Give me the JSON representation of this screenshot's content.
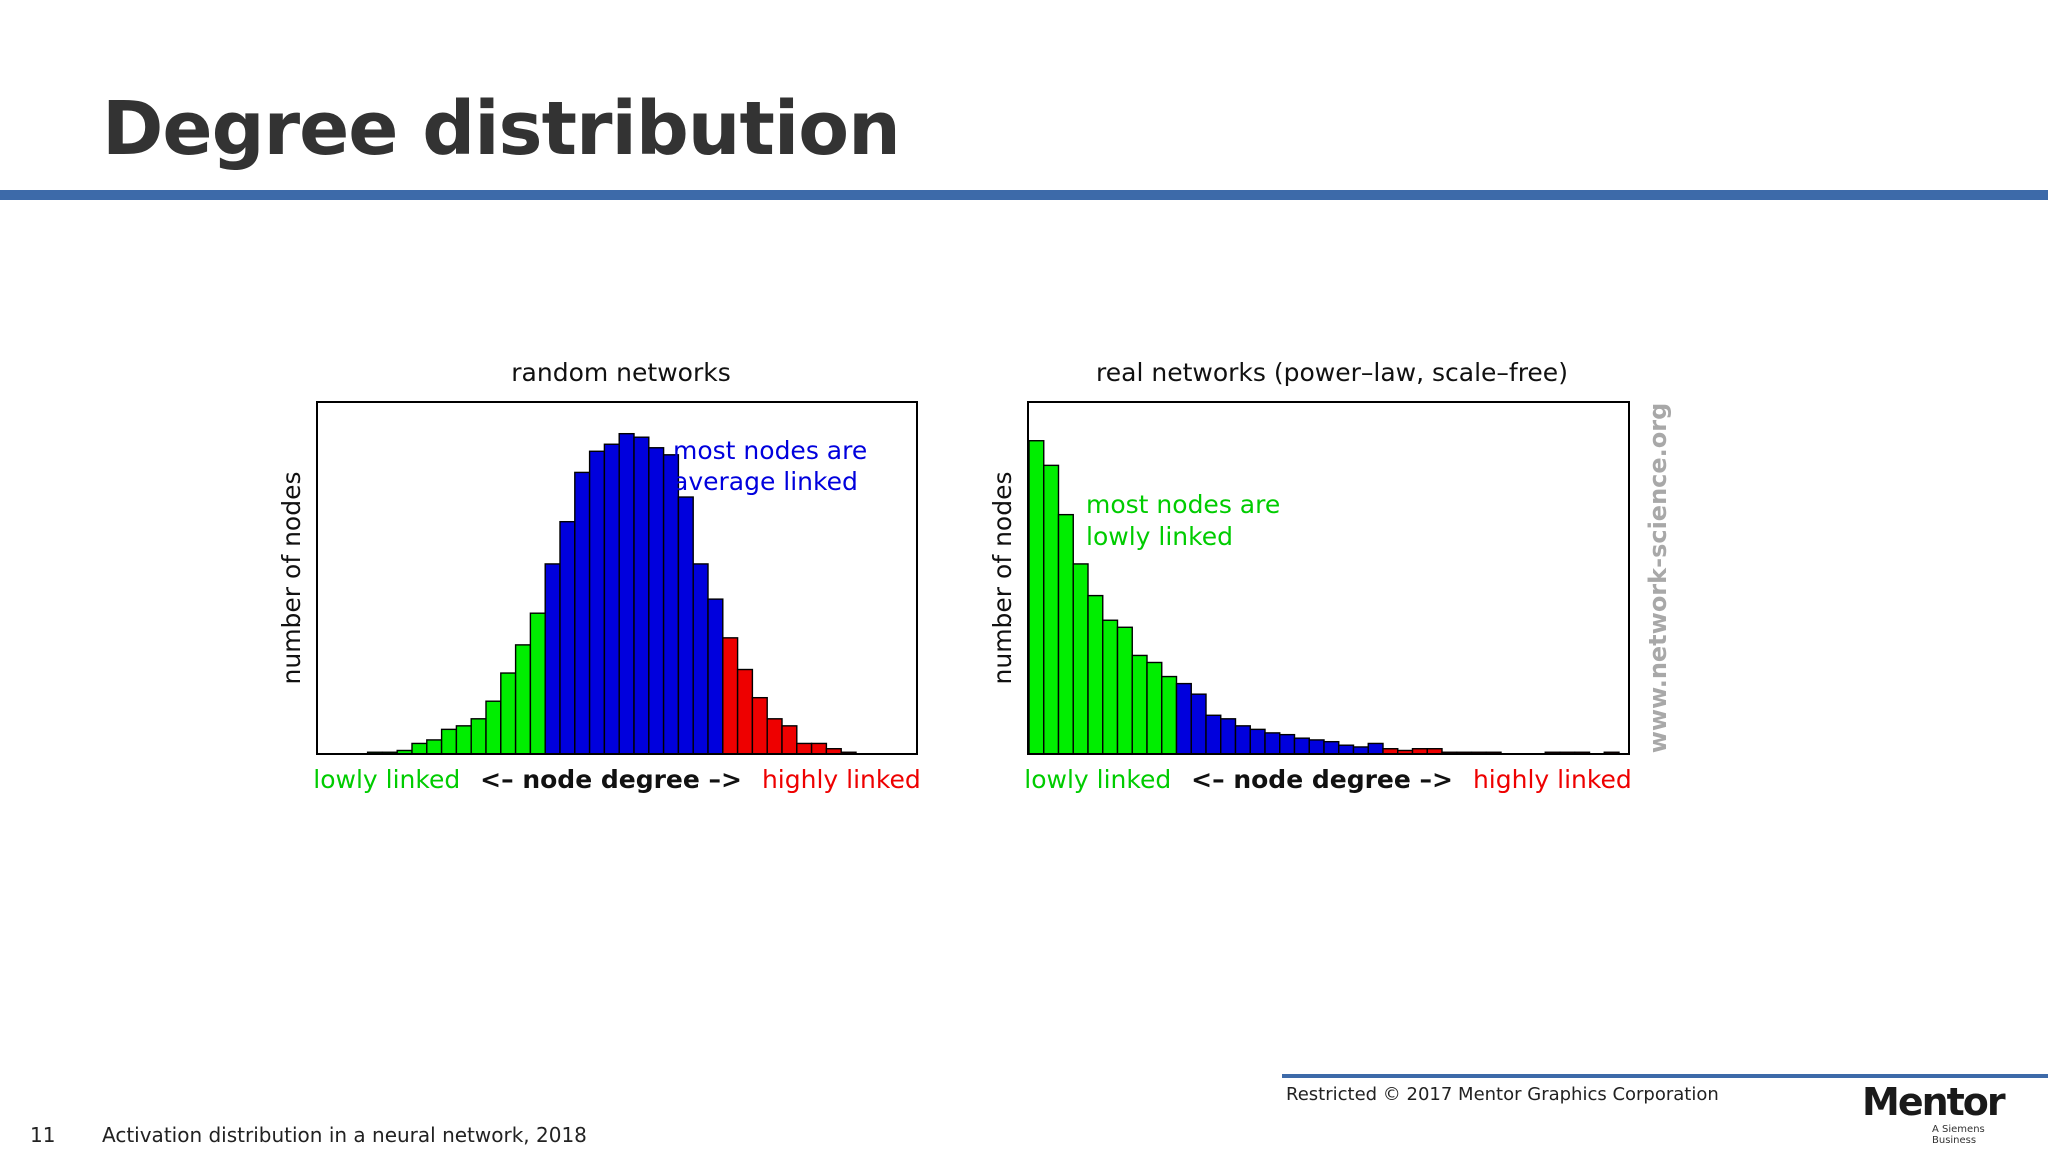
{
  "slide": {
    "title": "Degree distribution",
    "copyright": "Restricted © 2017 Mentor Graphics Corporation",
    "page_number": "11",
    "footer": "Activation distribution in a neural network, 2018",
    "logo_text": "Mentor",
    "logo_subtext": "A Siemens Business",
    "watermark": "www.network-science.org"
  },
  "colors": {
    "green": "#00ee00",
    "blue": "#0000dd",
    "red": "#ee0000",
    "title_bar": "#3d6aa9"
  },
  "chart_data": [
    {
      "type": "bar",
      "title": "random networks",
      "ylabel": "number of nodes",
      "xlabel_parts": {
        "left": "lowly linked",
        "center": "<– node degree –>",
        "right": "highly linked"
      },
      "annotation": [
        "most nodes are",
        "average linked"
      ],
      "annotation_color": "blue",
      "ylim": [
        0,
        100
      ],
      "values": [
        0,
        0,
        0.5,
        0.5,
        1,
        3,
        4,
        7,
        8,
        10,
        15,
        23,
        31,
        40,
        54,
        66,
        80,
        86,
        88,
        91,
        90,
        87,
        85,
        73,
        54,
        44,
        33,
        24,
        16,
        10,
        8,
        3,
        3,
        1.5,
        0.5,
        0,
        0
      ],
      "segments": [
        "green",
        "green",
        "green",
        "green",
        "green",
        "green",
        "green",
        "green",
        "green",
        "green",
        "green",
        "green",
        "green",
        "green",
        "blue",
        "blue",
        "blue",
        "blue",
        "blue",
        "blue",
        "blue",
        "blue",
        "blue",
        "blue",
        "blue",
        "blue",
        "red",
        "red",
        "red",
        "red",
        "red",
        "red",
        "red",
        "red",
        "red",
        "red",
        "red"
      ]
    },
    {
      "type": "bar",
      "title": "real networks (power–law, scale–free)",
      "ylabel": "number of nodes",
      "xlabel_parts": {
        "left": "lowly linked",
        "center": "<– node degree –>",
        "right": "highly linked"
      },
      "annotation": [
        "most nodes are",
        "lowly linked"
      ],
      "annotation_color": "green",
      "ylim": [
        0,
        100
      ],
      "values": [
        89,
        82,
        68,
        54,
        45,
        38,
        36,
        28,
        26,
        22,
        20,
        17,
        11,
        10,
        8,
        7,
        6,
        5.5,
        4.5,
        4,
        3.5,
        2.5,
        2,
        3,
        1.5,
        1,
        1.5,
        1.5,
        0.5,
        0.5,
        0.5,
        0.5,
        0,
        0,
        0,
        0.5,
        0.5,
        0.5,
        0,
        0.5
      ],
      "segments": [
        "green",
        "green",
        "green",
        "green",
        "green",
        "green",
        "green",
        "green",
        "green",
        "green",
        "blue",
        "blue",
        "blue",
        "blue",
        "blue",
        "blue",
        "blue",
        "blue",
        "blue",
        "blue",
        "blue",
        "blue",
        "blue",
        "blue",
        "red",
        "red",
        "red",
        "red",
        "red",
        "red",
        "red",
        "red",
        "red",
        "red",
        "red",
        "red",
        "red",
        "red",
        "red",
        "red"
      ]
    }
  ]
}
